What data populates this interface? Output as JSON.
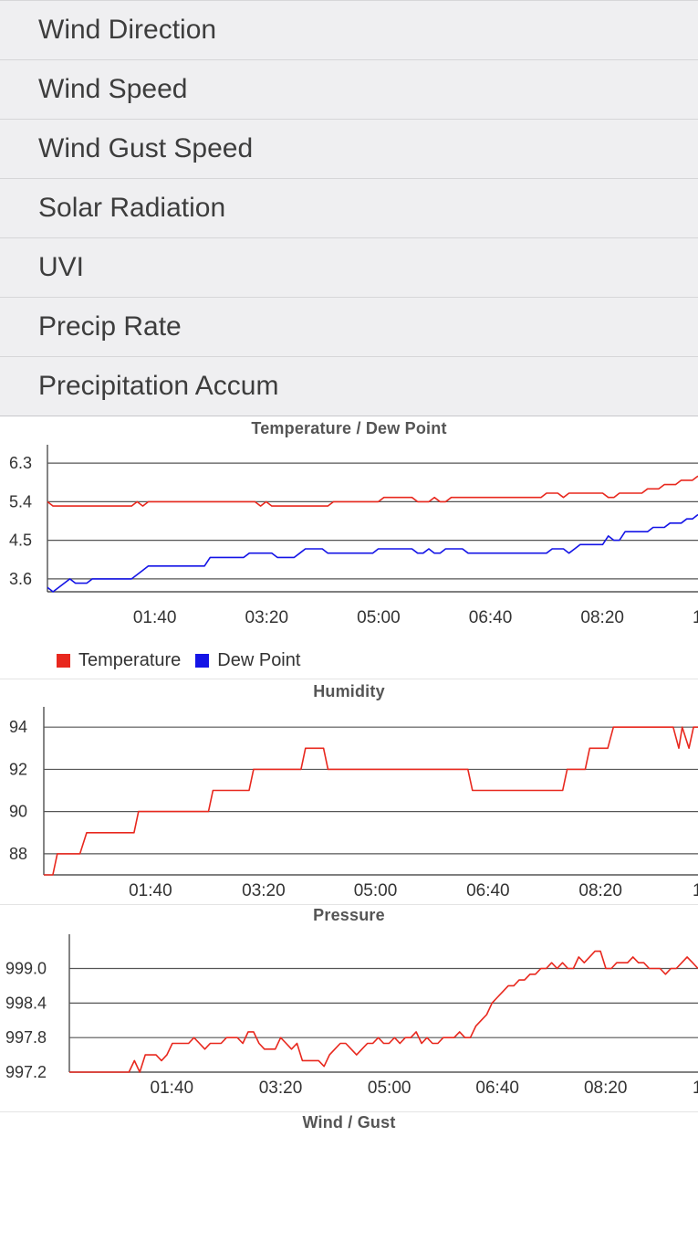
{
  "menu": {
    "items": [
      {
        "label": "Wind Direction"
      },
      {
        "label": "Wind Speed"
      },
      {
        "label": "Wind Gust Speed"
      },
      {
        "label": "Solar Radiation"
      },
      {
        "label": "UVI"
      },
      {
        "label": "Precip Rate"
      },
      {
        "label": "Precipitation Accum"
      }
    ]
  },
  "colors": {
    "temperature": "#e8281e",
    "dewpoint": "#1414e6",
    "humidity": "#e8281e",
    "pressure": "#e8281e"
  },
  "chart_data": [
    {
      "type": "line",
      "title": "Temperature / Dew Point",
      "x_ticks": [
        "01:40",
        "03:20",
        "05:00",
        "06:40",
        "08:20",
        "1"
      ],
      "xlim": [
        0,
        580
      ],
      "y_ticks": [
        "6.3",
        "5.4",
        "4.5",
        "3.6"
      ],
      "ylim": [
        3.3,
        6.6
      ],
      "legend": "bottom-left",
      "series": [
        {
          "name": "Temperature",
          "color": "#e8281e",
          "points": [
            [
              0,
              5.4
            ],
            [
              5,
              5.3
            ],
            [
              75,
              5.3
            ],
            [
              80,
              5.4
            ],
            [
              85,
              5.3
            ],
            [
              90,
              5.4
            ],
            [
              185,
              5.4
            ],
            [
              190,
              5.3
            ],
            [
              195,
              5.4
            ],
            [
              200,
              5.3
            ],
            [
              250,
              5.3
            ],
            [
              255,
              5.4
            ],
            [
              295,
              5.4
            ],
            [
              300,
              5.5
            ],
            [
              325,
              5.5
            ],
            [
              330,
              5.4
            ],
            [
              340,
              5.4
            ],
            [
              345,
              5.5
            ],
            [
              350,
              5.4
            ],
            [
              355,
              5.4
            ],
            [
              360,
              5.5
            ],
            [
              440,
              5.5
            ],
            [
              445,
              5.6
            ],
            [
              455,
              5.6
            ],
            [
              460,
              5.5
            ],
            [
              465,
              5.6
            ],
            [
              495,
              5.6
            ],
            [
              500,
              5.5
            ],
            [
              505,
              5.5
            ],
            [
              510,
              5.6
            ],
            [
              530,
              5.6
            ],
            [
              535,
              5.7
            ],
            [
              545,
              5.7
            ],
            [
              550,
              5.8
            ],
            [
              560,
              5.8
            ],
            [
              565,
              5.9
            ],
            [
              575,
              5.9
            ],
            [
              580,
              6.0
            ]
          ]
        },
        {
          "name": "Dew Point",
          "color": "#1414e6",
          "points": [
            [
              0,
              3.4
            ],
            [
              5,
              3.3
            ],
            [
              15,
              3.5
            ],
            [
              20,
              3.6
            ],
            [
              25,
              3.5
            ],
            [
              35,
              3.5
            ],
            [
              40,
              3.6
            ],
            [
              75,
              3.6
            ],
            [
              85,
              3.8
            ],
            [
              90,
              3.9
            ],
            [
              140,
              3.9
            ],
            [
              145,
              4.1
            ],
            [
              175,
              4.1
            ],
            [
              180,
              4.2
            ],
            [
              200,
              4.2
            ],
            [
              205,
              4.1
            ],
            [
              220,
              4.1
            ],
            [
              225,
              4.2
            ],
            [
              230,
              4.3
            ],
            [
              245,
              4.3
            ],
            [
              250,
              4.2
            ],
            [
              290,
              4.2
            ],
            [
              295,
              4.3
            ],
            [
              325,
              4.3
            ],
            [
              330,
              4.2
            ],
            [
              335,
              4.2
            ],
            [
              340,
              4.3
            ],
            [
              345,
              4.2
            ],
            [
              350,
              4.2
            ],
            [
              355,
              4.3
            ],
            [
              370,
              4.3
            ],
            [
              375,
              4.2
            ],
            [
              445,
              4.2
            ],
            [
              450,
              4.3
            ],
            [
              460,
              4.3
            ],
            [
              465,
              4.2
            ],
            [
              470,
              4.3
            ],
            [
              475,
              4.4
            ],
            [
              495,
              4.4
            ],
            [
              500,
              4.6
            ],
            [
              505,
              4.5
            ],
            [
              510,
              4.5
            ],
            [
              515,
              4.7
            ],
            [
              535,
              4.7
            ],
            [
              540,
              4.8
            ],
            [
              550,
              4.8
            ],
            [
              555,
              4.9
            ],
            [
              565,
              4.9
            ],
            [
              570,
              5.0
            ],
            [
              575,
              5.0
            ],
            [
              580,
              5.1
            ]
          ]
        }
      ]
    },
    {
      "type": "line",
      "title": "Humidity",
      "x_ticks": [
        "01:40",
        "03:20",
        "05:00",
        "06:40",
        "08:20",
        "1"
      ],
      "xlim": [
        0,
        580
      ],
      "y_ticks": [
        "94",
        "92",
        "90",
        "88"
      ],
      "ylim": [
        87,
        94.7
      ],
      "series": [
        {
          "name": "Humidity",
          "color": "#e8281e",
          "points": [
            [
              0,
              87
            ],
            [
              8,
              87
            ],
            [
              12,
              88
            ],
            [
              32,
              88
            ],
            [
              38,
              89
            ],
            [
              80,
              89
            ],
            [
              84,
              90
            ],
            [
              146,
              90
            ],
            [
              150,
              91
            ],
            [
              182,
              91
            ],
            [
              186,
              92
            ],
            [
              228,
              92
            ],
            [
              232,
              93
            ],
            [
              248,
              93
            ],
            [
              252,
              92
            ],
            [
              376,
              92
            ],
            [
              380,
              91
            ],
            [
              460,
              91
            ],
            [
              464,
              92
            ],
            [
              480,
              92
            ],
            [
              484,
              93
            ],
            [
              500,
              93
            ],
            [
              505,
              94
            ],
            [
              558,
              94
            ],
            [
              563,
              93
            ],
            [
              566,
              94
            ],
            [
              572,
              93
            ],
            [
              576,
              94
            ],
            [
              580,
              94
            ]
          ]
        }
      ]
    },
    {
      "type": "line",
      "title": "Pressure",
      "x_ticks": [
        "01:40",
        "03:20",
        "05:00",
        "06:40",
        "08:20",
        "1"
      ],
      "xlim": [
        0,
        580
      ],
      "y_ticks": [
        "999.0",
        "998.4",
        "997.8",
        "997.2"
      ],
      "ylim": [
        997.2,
        999.5
      ],
      "series": [
        {
          "name": "Pressure",
          "color": "#e8281e",
          "points": [
            [
              0,
              997.2
            ],
            [
              55,
              997.2
            ],
            [
              60,
              997.4
            ],
            [
              65,
              997.2
            ],
            [
              70,
              997.5
            ],
            [
              80,
              997.5
            ],
            [
              85,
              997.4
            ],
            [
              90,
              997.5
            ],
            [
              95,
              997.7
            ],
            [
              110,
              997.7
            ],
            [
              115,
              997.8
            ],
            [
              120,
              997.7
            ],
            [
              125,
              997.6
            ],
            [
              130,
              997.7
            ],
            [
              140,
              997.7
            ],
            [
              145,
              997.8
            ],
            [
              155,
              997.8
            ],
            [
              160,
              997.7
            ],
            [
              165,
              997.9
            ],
            [
              170,
              997.9
            ],
            [
              175,
              997.7
            ],
            [
              180,
              997.6
            ],
            [
              190,
              997.6
            ],
            [
              195,
              997.8
            ],
            [
              200,
              997.7
            ],
            [
              205,
              997.6
            ],
            [
              210,
              997.7
            ],
            [
              215,
              997.4
            ],
            [
              230,
              997.4
            ],
            [
              235,
              997.3
            ],
            [
              240,
              997.5
            ],
            [
              245,
              997.6
            ],
            [
              250,
              997.7
            ],
            [
              255,
              997.7
            ],
            [
              260,
              997.6
            ],
            [
              265,
              997.5
            ],
            [
              270,
              997.6
            ],
            [
              275,
              997.7
            ],
            [
              280,
              997.7
            ],
            [
              285,
              997.8
            ],
            [
              290,
              997.7
            ],
            [
              295,
              997.7
            ],
            [
              300,
              997.8
            ],
            [
              305,
              997.7
            ],
            [
              310,
              997.8
            ],
            [
              315,
              997.8
            ],
            [
              320,
              997.9
            ],
            [
              325,
              997.7
            ],
            [
              330,
              997.8
            ],
            [
              335,
              997.7
            ],
            [
              340,
              997.7
            ],
            [
              345,
              997.8
            ],
            [
              350,
              997.8
            ],
            [
              355,
              997.8
            ],
            [
              360,
              997.9
            ],
            [
              365,
              997.8
            ],
            [
              370,
              997.8
            ],
            [
              375,
              998.0
            ],
            [
              380,
              998.1
            ],
            [
              385,
              998.2
            ],
            [
              390,
              998.4
            ],
            [
              395,
              998.5
            ],
            [
              400,
              998.6
            ],
            [
              405,
              998.7
            ],
            [
              410,
              998.7
            ],
            [
              415,
              998.8
            ],
            [
              420,
              998.8
            ],
            [
              425,
              998.9
            ],
            [
              430,
              998.9
            ],
            [
              435,
              999.0
            ],
            [
              440,
              999.0
            ],
            [
              445,
              999.1
            ],
            [
              450,
              999.0
            ],
            [
              455,
              999.1
            ],
            [
              460,
              999.0
            ],
            [
              465,
              999.0
            ],
            [
              470,
              999.2
            ],
            [
              475,
              999.1
            ],
            [
              480,
              999.2
            ],
            [
              485,
              999.3
            ],
            [
              490,
              999.3
            ],
            [
              495,
              999.0
            ],
            [
              500,
              999.0
            ],
            [
              505,
              999.1
            ],
            [
              510,
              999.1
            ],
            [
              515,
              999.1
            ],
            [
              520,
              999.2
            ],
            [
              525,
              999.1
            ],
            [
              530,
              999.1
            ],
            [
              535,
              999.0
            ],
            [
              540,
              999.0
            ],
            [
              545,
              999.0
            ],
            [
              550,
              998.9
            ],
            [
              555,
              999.0
            ],
            [
              560,
              999.0
            ],
            [
              565,
              999.1
            ],
            [
              570,
              999.2
            ],
            [
              575,
              999.1
            ],
            [
              580,
              999.0
            ]
          ]
        }
      ]
    },
    {
      "type": "line",
      "title": "Wind / Gust"
    }
  ]
}
